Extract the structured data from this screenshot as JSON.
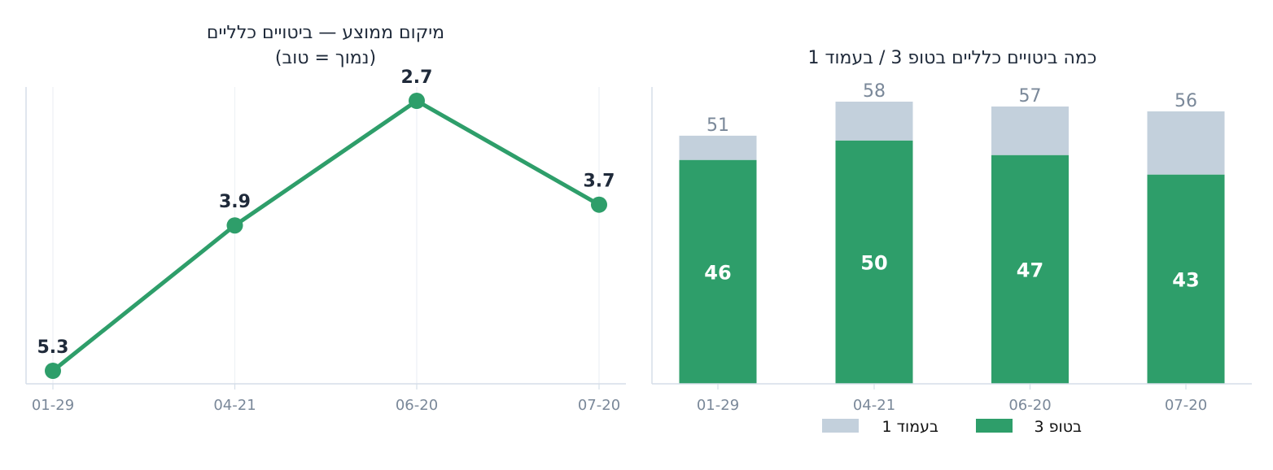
{
  "chart_data": [
    {
      "type": "line",
      "title": [
        "מיקום ממוצע — ביטויים כלליים",
        "(נמוך = טוב)"
      ],
      "x": [
        "01-29",
        "04-21",
        "06-20",
        "07-20"
      ],
      "series": [
        {
          "values": [
            5.3,
            3.9,
            2.7,
            3.7
          ],
          "color": "#2e9e6a"
        }
      ],
      "y_inverted": true,
      "grid": {
        "x": true,
        "y": false
      }
    },
    {
      "type": "bar",
      "stacked": true,
      "title": "כמה ביטויים כלליים בטופ 3 / בעמוד 1",
      "categories": [
        "01-29",
        "04-21",
        "06-20",
        "07-20"
      ],
      "series": [
        {
          "name": "בטופ 3",
          "values": [
            46,
            50,
            47,
            43
          ],
          "color": "#2e9e6a"
        },
        {
          "name": "בעמוד 1",
          "values": [
            51,
            58,
            57,
            56
          ],
          "color": "#c3d0dc"
        }
      ],
      "legend": "bottom-center"
    }
  ]
}
